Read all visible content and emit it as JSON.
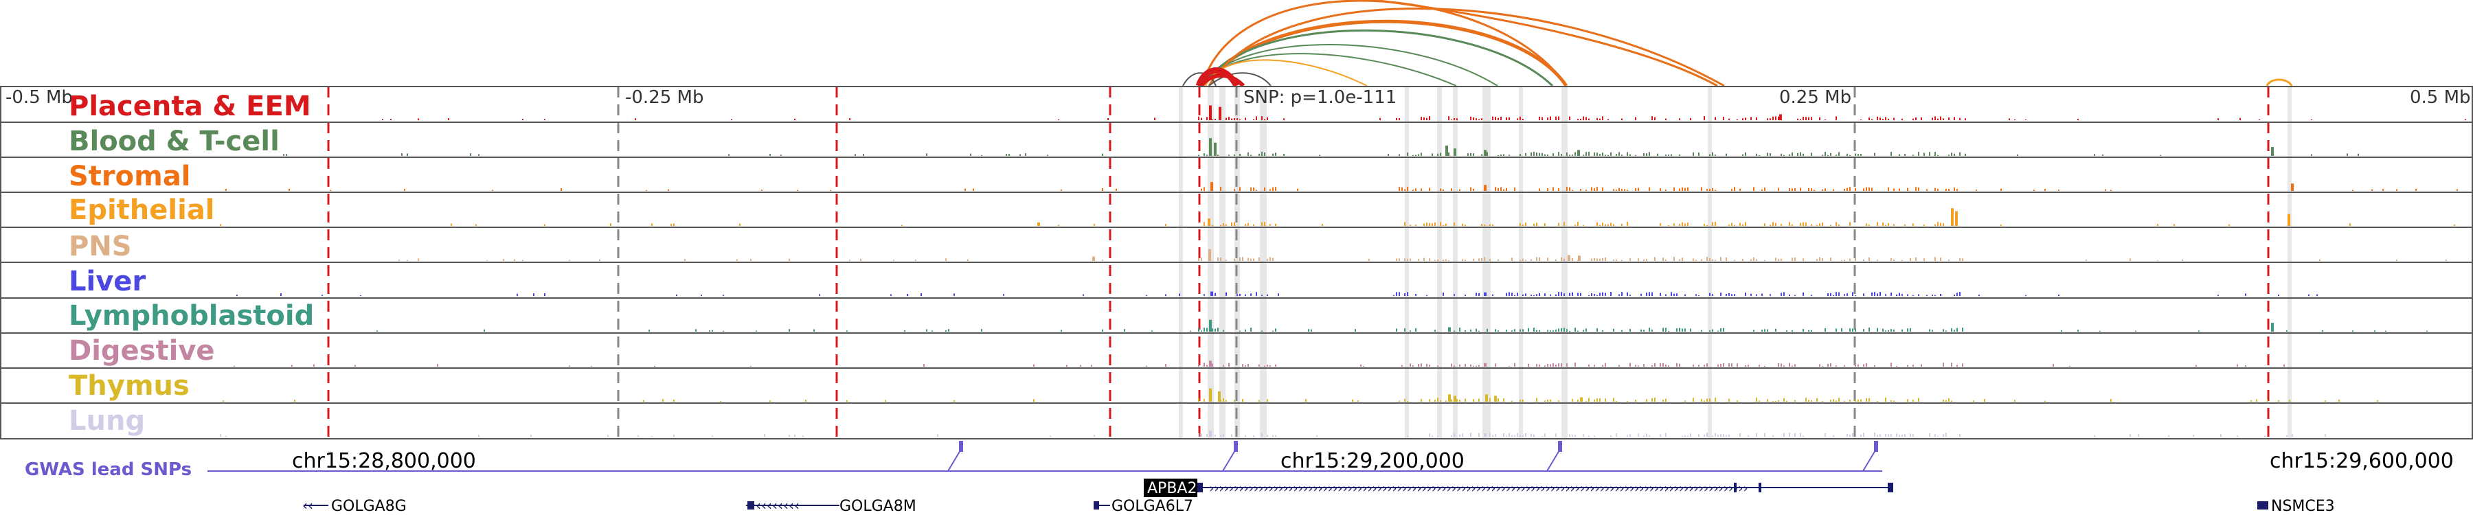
{
  "tracks": [
    {
      "key": "placenta",
      "label": "Placenta & EEM",
      "color": "#d7191c"
    },
    {
      "key": "blood",
      "label": "Blood & T-cell",
      "color": "#5a8a5a"
    },
    {
      "key": "stromal",
      "label": "Stromal",
      "color": "#f07014"
    },
    {
      "key": "epithelial",
      "label": "Epithelial",
      "color": "#f5a020"
    },
    {
      "key": "pns",
      "label": "PNS",
      "color": "#deb088"
    },
    {
      "key": "liver",
      "label": "Liver",
      "color": "#4a48e0"
    },
    {
      "key": "lymphoblastoid",
      "label": "Lymphoblastoid",
      "color": "#3f9a84"
    },
    {
      "key": "digestive",
      "label": "Digestive",
      "color": "#c385a2"
    },
    {
      "key": "thymus",
      "label": "Thymus",
      "color": "#d9b92a"
    },
    {
      "key": "lung",
      "label": "Lung",
      "color": "#d0cde6"
    }
  ],
  "scale": {
    "left": "-0.5 Mb",
    "mid_left": "-0.25 Mb",
    "mid_right": "0.25 Mb",
    "right": "0.5 Mb"
  },
  "snp_annotation": "SNP: p=1.0e-111",
  "coordinates": [
    "chr15:28,800,000",
    "chr15:29,200,000",
    "chr15:29,600,000"
  ],
  "gwas_label": "GWAS lead SNPs",
  "genes": [
    {
      "name": "GOLGA8G",
      "strand": "-"
    },
    {
      "name": "GOLGA8M",
      "strand": "-"
    },
    {
      "name": "GOLGA6L7",
      "strand": "-"
    },
    {
      "name": "APBA2",
      "strand": "+",
      "highlighted": true
    },
    {
      "name": "NSMCE3",
      "strand": "-"
    }
  ],
  "colors": {
    "arc_primary": "#e8701a",
    "arc_secondary": "#5a8a5a",
    "gwas": "#6a5acd",
    "dashed_line": "#d7191c"
  }
}
